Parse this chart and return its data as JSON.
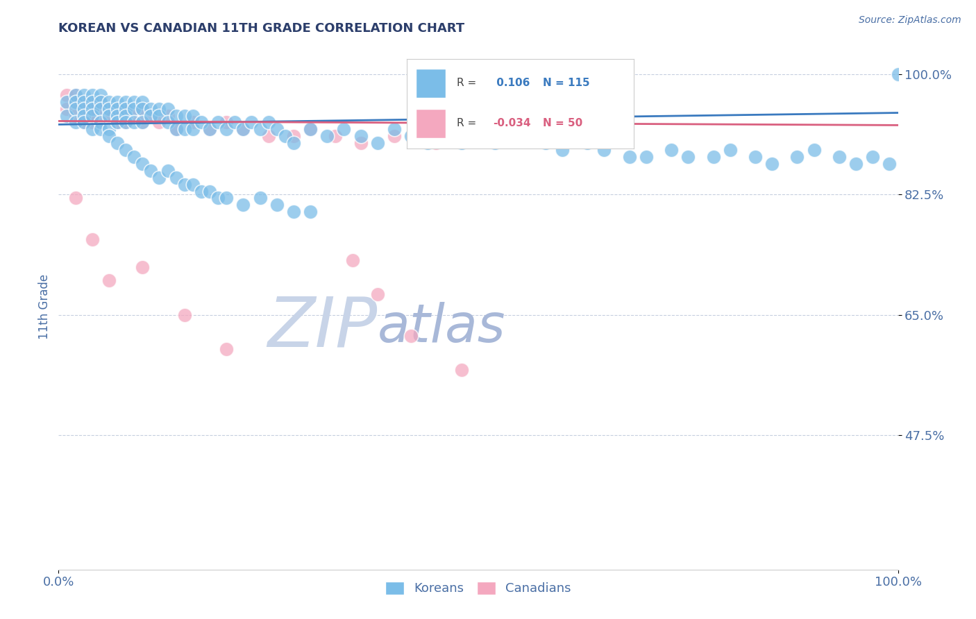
{
  "title": "KOREAN VS CANADIAN 11TH GRADE CORRELATION CHART",
  "source": "Source: ZipAtlas.com",
  "ylabel": "11th Grade",
  "xlim": [
    0.0,
    1.0
  ],
  "ylim": [
    0.28,
    1.045
  ],
  "yticks": [
    1.0,
    0.825,
    0.65,
    0.475
  ],
  "ytick_labels": [
    "100.0%",
    "82.5%",
    "65.0%",
    "47.5%"
  ],
  "xticks": [
    0.0,
    1.0
  ],
  "xtick_labels": [
    "0.0%",
    "100.0%"
  ],
  "legend_korean": "Koreans",
  "legend_canadian": "Canadians",
  "R_korean": 0.106,
  "N_korean": 115,
  "R_canadian": -0.034,
  "N_canadian": 50,
  "korean_color": "#7bbde8",
  "canadian_color": "#f4a8bf",
  "korean_line_color": "#3a7abf",
  "canadian_line_color": "#d95f7f",
  "grid_color": "#b8c4d8",
  "title_color": "#2c3e6b",
  "tick_color": "#4a6fa5",
  "watermark_zip": "ZIP",
  "watermark_atlas": "atlas",
  "watermark_color_zip": "#c8d4e8",
  "watermark_color_atlas": "#a8b8d8",
  "background_color": "#ffffff",
  "korean_x": [
    0.01,
    0.01,
    0.02,
    0.02,
    0.02,
    0.02,
    0.03,
    0.03,
    0.03,
    0.03,
    0.03,
    0.04,
    0.04,
    0.04,
    0.04,
    0.04,
    0.05,
    0.05,
    0.05,
    0.05,
    0.05,
    0.06,
    0.06,
    0.06,
    0.06,
    0.07,
    0.07,
    0.07,
    0.07,
    0.08,
    0.08,
    0.08,
    0.08,
    0.09,
    0.09,
    0.09,
    0.1,
    0.1,
    0.1,
    0.11,
    0.11,
    0.12,
    0.12,
    0.13,
    0.13,
    0.14,
    0.14,
    0.15,
    0.15,
    0.16,
    0.16,
    0.17,
    0.18,
    0.19,
    0.2,
    0.21,
    0.22,
    0.23,
    0.24,
    0.25,
    0.26,
    0.27,
    0.28,
    0.3,
    0.32,
    0.34,
    0.36,
    0.38,
    0.4,
    0.42,
    0.44,
    0.46,
    0.48,
    0.5,
    0.52,
    0.55,
    0.58,
    0.6,
    0.63,
    0.65,
    0.68,
    0.7,
    0.73,
    0.75,
    0.78,
    0.8,
    0.83,
    0.85,
    0.88,
    0.9,
    0.93,
    0.95,
    0.97,
    0.99,
    1.0,
    0.06,
    0.07,
    0.08,
    0.09,
    0.1,
    0.11,
    0.12,
    0.13,
    0.14,
    0.15,
    0.16,
    0.17,
    0.18,
    0.19,
    0.2,
    0.22,
    0.24,
    0.26,
    0.28,
    0.3
  ],
  "korean_y": [
    0.96,
    0.94,
    0.97,
    0.96,
    0.95,
    0.93,
    0.97,
    0.96,
    0.95,
    0.94,
    0.93,
    0.97,
    0.96,
    0.95,
    0.94,
    0.92,
    0.97,
    0.96,
    0.95,
    0.93,
    0.92,
    0.96,
    0.95,
    0.94,
    0.92,
    0.96,
    0.95,
    0.94,
    0.93,
    0.96,
    0.95,
    0.94,
    0.93,
    0.96,
    0.95,
    0.93,
    0.96,
    0.95,
    0.93,
    0.95,
    0.94,
    0.95,
    0.94,
    0.95,
    0.93,
    0.94,
    0.92,
    0.94,
    0.92,
    0.94,
    0.92,
    0.93,
    0.92,
    0.93,
    0.92,
    0.93,
    0.92,
    0.93,
    0.92,
    0.93,
    0.92,
    0.91,
    0.9,
    0.92,
    0.91,
    0.92,
    0.91,
    0.9,
    0.92,
    0.91,
    0.9,
    0.91,
    0.9,
    0.91,
    0.9,
    0.91,
    0.9,
    0.89,
    0.9,
    0.89,
    0.88,
    0.88,
    0.89,
    0.88,
    0.88,
    0.89,
    0.88,
    0.87,
    0.88,
    0.89,
    0.88,
    0.87,
    0.88,
    0.87,
    1.0,
    0.91,
    0.9,
    0.89,
    0.88,
    0.87,
    0.86,
    0.85,
    0.86,
    0.85,
    0.84,
    0.84,
    0.83,
    0.83,
    0.82,
    0.82,
    0.81,
    0.82,
    0.81,
    0.8,
    0.8
  ],
  "canadian_x": [
    0.01,
    0.01,
    0.02,
    0.02,
    0.02,
    0.03,
    0.03,
    0.03,
    0.04,
    0.04,
    0.04,
    0.04,
    0.05,
    0.05,
    0.05,
    0.06,
    0.06,
    0.07,
    0.07,
    0.08,
    0.08,
    0.09,
    0.1,
    0.1,
    0.11,
    0.12,
    0.13,
    0.14,
    0.16,
    0.18,
    0.2,
    0.22,
    0.25,
    0.28,
    0.3,
    0.33,
    0.36,
    0.4,
    0.45,
    0.5,
    0.02,
    0.04,
    0.06,
    0.1,
    0.15,
    0.2,
    0.35,
    0.38,
    0.42,
    0.48
  ],
  "canadian_y": [
    0.97,
    0.95,
    0.97,
    0.96,
    0.94,
    0.96,
    0.95,
    0.93,
    0.96,
    0.95,
    0.94,
    0.93,
    0.96,
    0.95,
    0.93,
    0.95,
    0.94,
    0.95,
    0.93,
    0.95,
    0.93,
    0.94,
    0.95,
    0.93,
    0.94,
    0.93,
    0.94,
    0.92,
    0.93,
    0.92,
    0.93,
    0.92,
    0.91,
    0.91,
    0.92,
    0.91,
    0.9,
    0.91,
    0.9,
    0.91,
    0.82,
    0.76,
    0.7,
    0.72,
    0.65,
    0.6,
    0.73,
    0.68,
    0.62,
    0.57
  ],
  "trend_korean_x0": 0.0,
  "trend_korean_y0": 0.927,
  "trend_korean_x1": 1.0,
  "trend_korean_y1": 0.944,
  "trend_canadian_x0": 0.0,
  "trend_canadian_y0": 0.932,
  "trend_canadian_x1": 1.0,
  "trend_canadian_y1": 0.926
}
